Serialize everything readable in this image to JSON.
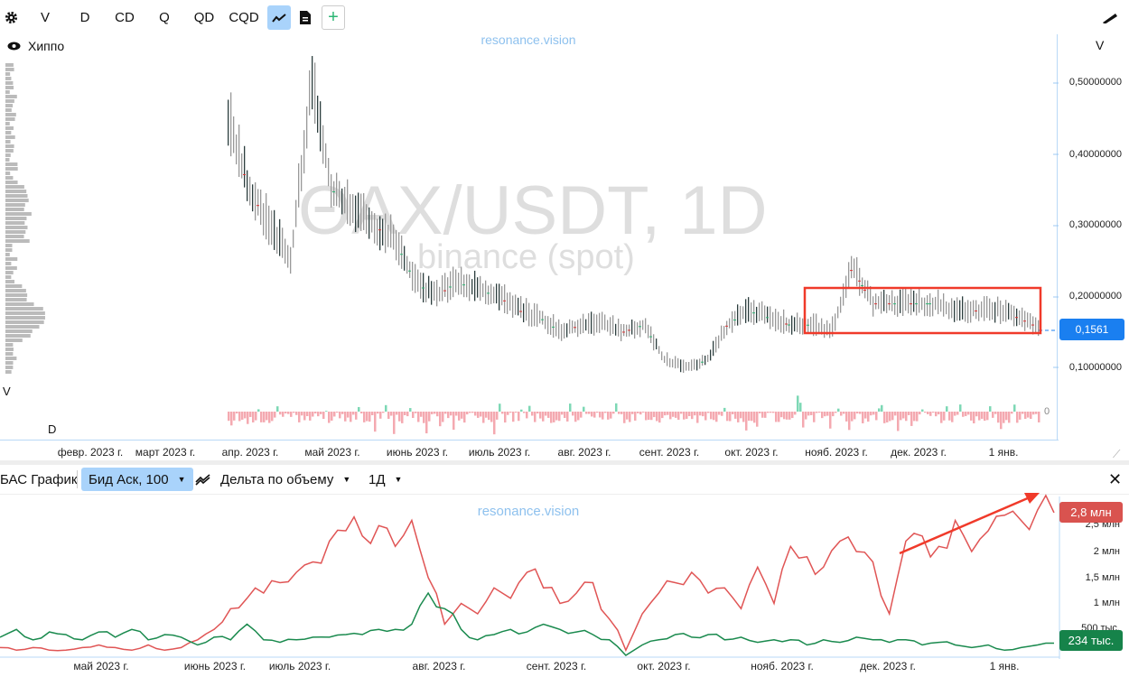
{
  "toolbar": {
    "items": [
      "V",
      "D",
      "CD",
      "Q",
      "QD",
      "CQD"
    ],
    "settings_icon": "gear-icon",
    "chart_icon": "line-chart-icon",
    "doc_icon": "document-icon",
    "add_label": "+",
    "ruler_icon": "ruler-icon"
  },
  "indicator": {
    "label": "Хиппо",
    "icon": "eye-icon"
  },
  "watermark": {
    "site": "resonance.vision",
    "symbol": "ΘAX/USDT, 1D",
    "exchange": "binance (spot)"
  },
  "main_chart": {
    "left_labels": {
      "v": "V",
      "d": "D"
    },
    "axis_label": "V",
    "yticks": [
      "0,50000000",
      "0,40000000",
      "0,30000000",
      "0,20000000",
      "0,10000000"
    ],
    "zero_label": "0",
    "current_price": "0,1561",
    "accent": "#1a7ff0",
    "xlabels": [
      "февр. 2023 г.",
      "март 2023 г.",
      "апр. 2023 г.",
      "май 2023 г.",
      "июнь 2023 г.",
      "июль 2023 г.",
      "авг. 2023 г.",
      "сент. 2023 г.",
      "окт. 2023 г.",
      "нояб. 2023 г.",
      "дек. 2023 г.",
      "1 янв."
    ]
  },
  "bottom_panel": {
    "title": "БАС График",
    "mode": "Бид Аск, 100",
    "metric": "Дельта по объему",
    "timeframe": "1Д",
    "close_icon": "close-icon",
    "watermark": "resonance.vision",
    "yticks": [
      "2,5 млн",
      "2 млн",
      "1,5 млн",
      "1 млн",
      "500 тыс."
    ],
    "red_value": "2,8 млн",
    "green_value": "234 тыс.",
    "xlabels": [
      "май 2023 г.",
      "июнь 2023 г.",
      "июль 2023 г.",
      "авг. 2023 г.",
      "сент. 2023 г.",
      "окт. 2023 г.",
      "нояб. 2023 г.",
      "дек. 2023 г.",
      "1 янв."
    ]
  },
  "chart_data": [
    {
      "type": "candlestick",
      "note_unit": "USDT",
      "x_range": [
        "апр. 2023",
        "янв. 2024"
      ],
      "ylim": [
        0,
        0.55
      ],
      "weekly_price": [
        0.45,
        0.35,
        0.3,
        0.25,
        0.5,
        0.35,
        0.32,
        0.3,
        0.28,
        0.22,
        0.2,
        0.22,
        0.21,
        0.2,
        0.18,
        0.17,
        0.15,
        0.16,
        0.16,
        0.15,
        0.16,
        0.11,
        0.1,
        0.11,
        0.16,
        0.18,
        0.17,
        0.16,
        0.16,
        0.15,
        0.24,
        0.19,
        0.19,
        0.19,
        0.19,
        0.18,
        0.18,
        0.18,
        0.17,
        0.156
      ]
    },
    {
      "type": "line",
      "ylim": [
        0,
        2.9
      ],
      "series": [
        {
          "color": "#e05555",
          "values": [
            0.15,
            0.1,
            0.15,
            0.1,
            0.1,
            0.15,
            0.2,
            0.15,
            0.1,
            0.2,
            0.1,
            0.15,
            0.3,
            0.5,
            0.9,
            1.1,
            1.2,
            1.4,
            1.6,
            1.8,
            2.2,
            2.4,
            2.3,
            2.5,
            2.1,
            2.6,
            1.5,
            0.6,
            1.0,
            0.8,
            1.3,
            1.1,
            1.6,
            1.3,
            1.0,
            1.2,
            1.4,
            0.7,
            0.1,
            0.8,
            1.2,
            1.4,
            1.6,
            1.2,
            1.3,
            0.9,
            1.7,
            1.0,
            2.1,
            1.9,
            1.7,
            2.2,
            2.0,
            1.8,
            0.8,
            2.2,
            2.3,
            2.1,
            2.6,
            2.0,
            2.4,
            2.7,
            2.6,
            2.8,
            2.75
          ]
        },
        {
          "color": "#1a8a4e",
          "values": [
            0.35,
            0.5,
            0.3,
            0.45,
            0.4,
            0.3,
            0.45,
            0.35,
            0.5,
            0.3,
            0.4,
            0.35,
            0.2,
            0.35,
            0.3,
            0.6,
            0.3,
            0.25,
            0.3,
            0.35,
            0.35,
            0.4,
            0.4,
            0.5,
            0.5,
            0.6,
            1.2,
            0.9,
            0.5,
            0.3,
            0.4,
            0.5,
            0.45,
            0.6,
            0.5,
            0.45,
            0.4,
            0.3,
            0.0,
            0.2,
            0.3,
            0.4,
            0.35,
            0.4,
            0.3,
            0.35,
            0.25,
            0.3,
            0.3,
            0.2,
            0.3,
            0.25,
            0.35,
            0.3,
            0.25,
            0.3,
            0.2,
            0.25,
            0.2,
            0.15,
            0.2,
            0.1,
            0.15,
            0.2,
            0.234
          ]
        }
      ]
    }
  ]
}
